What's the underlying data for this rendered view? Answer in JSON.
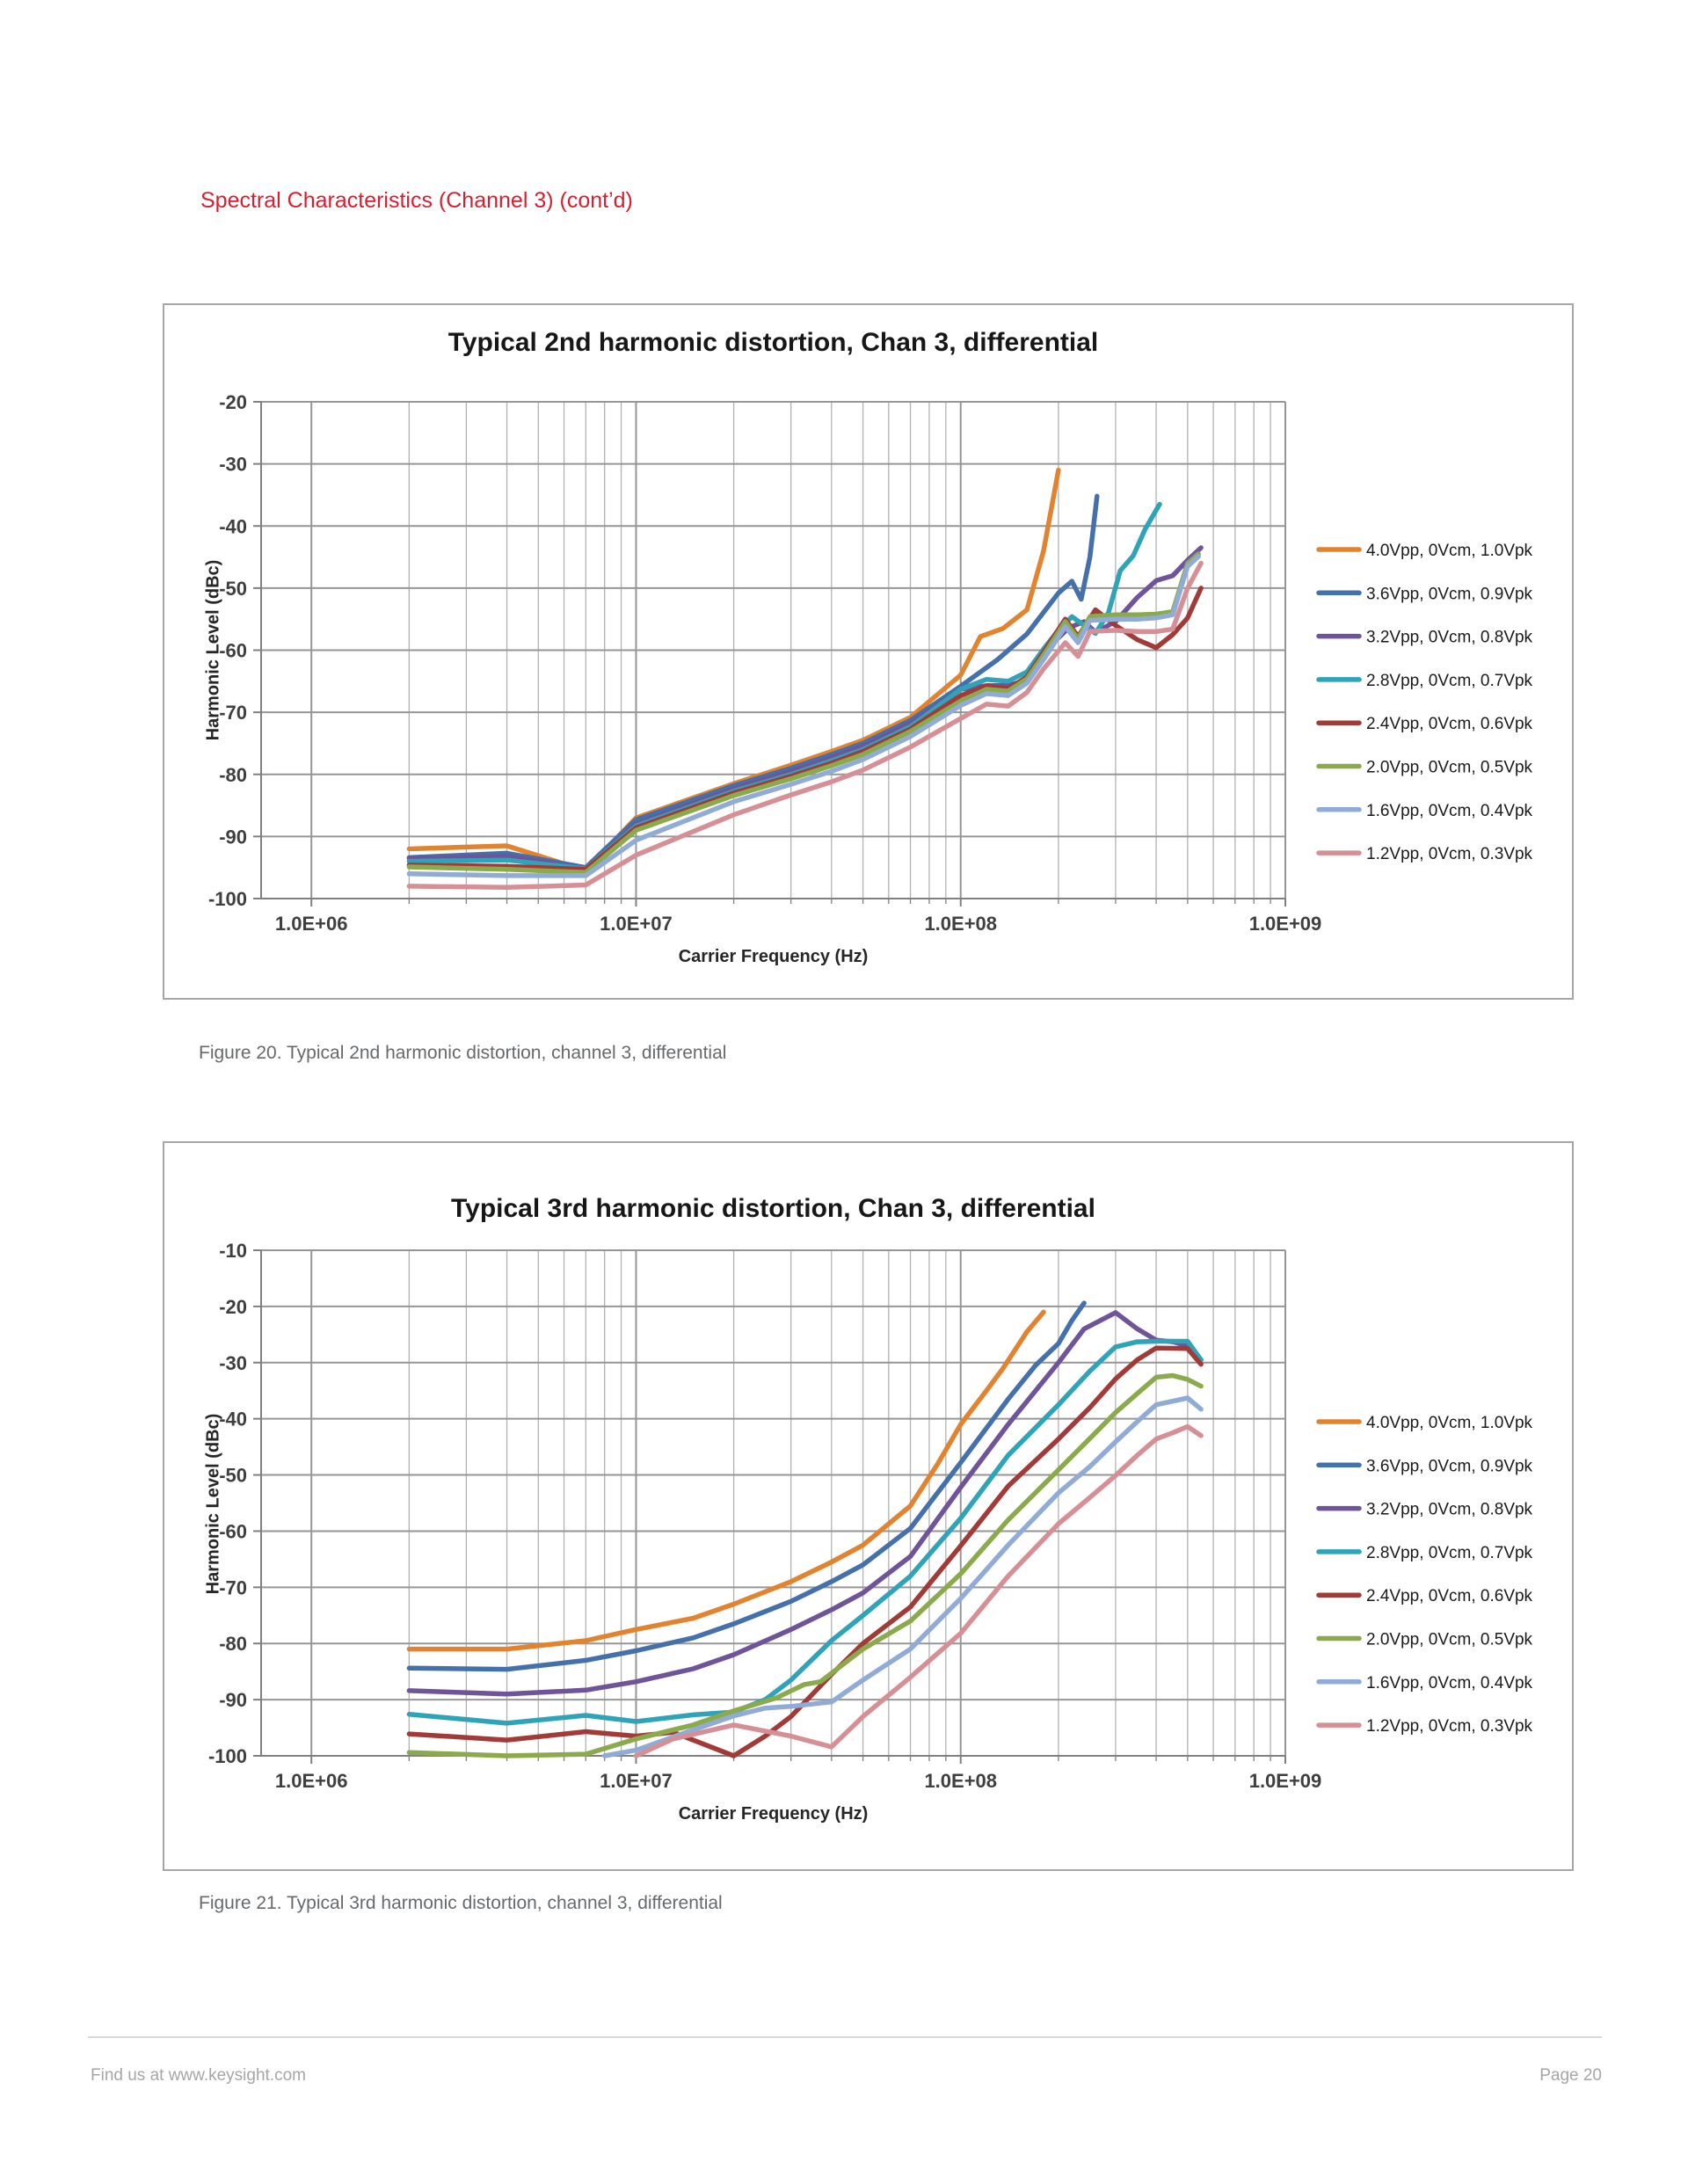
{
  "page": {
    "heading": "Spectral Characteristics (Channel 3) (cont’d)",
    "heading_color": "#d91f2f"
  },
  "figures": [
    {
      "caption": "Figure 20. Typical 2nd harmonic distortion, channel 3, differential"
    },
    {
      "caption": "Figure 21. Typical 3rd harmonic distortion, channel 3, differential"
    }
  ],
  "footer": {
    "left": "Find us at www.keysight.com",
    "right": "Page 20"
  },
  "chart_data": [
    {
      "type": "line",
      "title": "Typical 2nd harmonic distortion, Chan 3, differential",
      "xlabel": "Carrier Frequency (Hz)",
      "ylabel": "Harmonic Level (dBc)",
      "xaxis": {
        "scale": "log",
        "min": 700000,
        "max": 1000000000,
        "ticks": [
          {
            "value": 1000000,
            "label": "1.0E+06"
          },
          {
            "value": 10000000,
            "label": "1.0E+07"
          },
          {
            "value": 100000000,
            "label": "1.0E+08"
          },
          {
            "value": 1000000000,
            "label": "1.0E+09"
          }
        ]
      },
      "yaxis": {
        "min": -100,
        "max": -20,
        "step": 10
      },
      "grid": true,
      "legend_position": "right",
      "series": [
        {
          "name": "4.0Vpp, 0Vcm, 1.0Vpk",
          "color": "#e2842f",
          "x": [
            2000000.0,
            4000000.0,
            7000000.0,
            10000000.0,
            20000000.0,
            30000000.0,
            40000000.0,
            50000000.0,
            70000000.0,
            100000000.0,
            115000000.0,
            135000000.0,
            160000000.0,
            180000000.0,
            200000000.0
          ],
          "y": [
            -92,
            -91.5,
            -95.5,
            -87,
            -81.5,
            -78.5,
            -76.3,
            -74.5,
            -70.8,
            -64,
            -57.8,
            -56.5,
            -53.5,
            -44,
            -31
          ]
        },
        {
          "name": "3.6Vpp, 0Vcm, 0.9Vpk",
          "color": "#4471ac",
          "x": [
            2000000.0,
            4000000.0,
            7000000.0,
            10000000.0,
            20000000.0,
            30000000.0,
            40000000.0,
            50000000.0,
            70000000.0,
            100000000.0,
            130000000.0,
            160000000.0,
            200000000.0,
            220000000.0,
            235000000.0,
            250000000.0,
            263000000.0
          ],
          "y": [
            -93.4,
            -92.7,
            -95,
            -87.3,
            -81.8,
            -79,
            -76.8,
            -75,
            -71.3,
            -65.8,
            -61.5,
            -57.4,
            -50.8,
            -48.9,
            -51.8,
            -45,
            -35.2
          ]
        },
        {
          "name": "3.2Vpp, 0Vcm, 0.8Vpk",
          "color": "#6f5499",
          "x": [
            2000000.0,
            4000000.0,
            7000000.0,
            10000000.0,
            20000000.0,
            30000000.0,
            40000000.0,
            50000000.0,
            70000000.0,
            100000000.0,
            120000000.0,
            140000000.0,
            160000000.0,
            180000000.0,
            200000000.0,
            215000000.0,
            240000000.0,
            260000000.0,
            300000000.0,
            350000000.0,
            400000000.0,
            450000000.0,
            500000000.0,
            550000000.0
          ],
          "y": [
            -93.5,
            -93.2,
            -95.2,
            -88,
            -82.3,
            -79.5,
            -77.3,
            -75.5,
            -71.8,
            -66.3,
            -65.7,
            -65.7,
            -64.8,
            -60.5,
            -58,
            -56.4,
            -55.4,
            -57.1,
            -55.4,
            -51.5,
            -48.8,
            -48,
            -45.5,
            -43.5
          ]
        },
        {
          "name": "2.8Vpp, 0Vcm, 0.7Vpk",
          "color": "#2fa3b8",
          "x": [
            2000000.0,
            4000000.0,
            7000000.0,
            10000000.0,
            20000000.0,
            30000000.0,
            40000000.0,
            50000000.0,
            70000000.0,
            100000000.0,
            120000000.0,
            140000000.0,
            160000000.0,
            180000000.0,
            200000000.0,
            220000000.0,
            240000000.0,
            260000000.0,
            285000000.0,
            310000000.0,
            340000000.0,
            370000000.0,
            410000000.0
          ],
          "y": [
            -94,
            -93.8,
            -95.2,
            -88.3,
            -82.7,
            -80,
            -77.8,
            -76,
            -72.3,
            -66.3,
            -64.7,
            -65,
            -63.5,
            -59.8,
            -56.8,
            -54.6,
            -56,
            -57.3,
            -54,
            -47.2,
            -44.8,
            -40.5,
            -36.5
          ]
        },
        {
          "name": "2.4Vpp, 0Vcm, 0.6Vpk",
          "color": "#a23b38",
          "x": [
            2000000.0,
            4000000.0,
            7000000.0,
            10000000.0,
            20000000.0,
            30000000.0,
            40000000.0,
            50000000.0,
            70000000.0,
            100000000.0,
            120000000.0,
            140000000.0,
            160000000.0,
            180000000.0,
            210000000.0,
            230000000.0,
            260000000.0,
            300000000.0,
            350000000.0,
            400000000.0,
            450000000.0,
            500000000.0,
            550000000.0
          ],
          "y": [
            -94.6,
            -94.8,
            -95.3,
            -88.6,
            -83,
            -80.3,
            -78.2,
            -76.3,
            -72.7,
            -67.3,
            -65.8,
            -66.2,
            -64.3,
            -60.3,
            -55,
            -57.8,
            -53.5,
            -56,
            -58.3,
            -59.6,
            -57.5,
            -54.8,
            -50
          ]
        },
        {
          "name": "2.0Vpp, 0Vcm, 0.5Vpk",
          "color": "#8aaa4b",
          "x": [
            2000000.0,
            4000000.0,
            7000000.0,
            10000000.0,
            20000000.0,
            30000000.0,
            40000000.0,
            50000000.0,
            70000000.0,
            100000000.0,
            120000000.0,
            140000000.0,
            160000000.0,
            180000000.0,
            210000000.0,
            230000000.0,
            250000000.0,
            300000000.0,
            350000000.0,
            400000000.0,
            450000000.0,
            500000000.0,
            540000000.0
          ],
          "y": [
            -94.9,
            -95.3,
            -95.8,
            -89,
            -83.4,
            -80.7,
            -78.6,
            -76.8,
            -73.1,
            -68.2,
            -66.3,
            -66.6,
            -64.6,
            -60.8,
            -55.4,
            -58.2,
            -54.6,
            -54.3,
            -54.3,
            -54.2,
            -53.8,
            -46,
            -44.5
          ]
        },
        {
          "name": "1.6Vpp, 0Vcm, 0.4Vpk",
          "color": "#90acd6",
          "x": [
            2000000.0,
            4000000.0,
            7000000.0,
            10000000.0,
            20000000.0,
            30000000.0,
            40000000.0,
            50000000.0,
            70000000.0,
            100000000.0,
            120000000.0,
            140000000.0,
            160000000.0,
            180000000.0,
            210000000.0,
            230000000.0,
            250000000.0,
            300000000.0,
            350000000.0,
            400000000.0,
            450000000.0,
            500000000.0,
            540000000.0
          ],
          "y": [
            -96,
            -96.3,
            -96.3,
            -90.6,
            -84.4,
            -81.6,
            -79.5,
            -77.6,
            -73.9,
            -68.9,
            -67,
            -67.3,
            -65.3,
            -61.5,
            -56.2,
            -58.8,
            -55.2,
            -55,
            -55,
            -54.8,
            -54.3,
            -46.5,
            -44.9
          ]
        },
        {
          "name": "1.2Vpp, 0Vcm, 0.3Vpk",
          "color": "#d78f96",
          "x": [
            2000000.0,
            4000000.0,
            7000000.0,
            10000000.0,
            20000000.0,
            30000000.0,
            40000000.0,
            50000000.0,
            70000000.0,
            100000000.0,
            120000000.0,
            140000000.0,
            160000000.0,
            180000000.0,
            210000000.0,
            230000000.0,
            250000000.0,
            300000000.0,
            350000000.0,
            400000000.0,
            450000000.0,
            500000000.0,
            550000000.0
          ],
          "y": [
            -98,
            -98.2,
            -97.8,
            -93,
            -86.5,
            -83.3,
            -81.2,
            -79.3,
            -75.6,
            -71,
            -68.7,
            -69,
            -66.8,
            -63,
            -58.8,
            -61,
            -57,
            -56.8,
            -57,
            -57,
            -56.6,
            -50,
            -46
          ]
        }
      ]
    },
    {
      "type": "line",
      "title": "Typical 3rd harmonic distortion, Chan 3, differential",
      "xlabel": "Carrier Frequency (Hz)",
      "ylabel": "Harmonic Level (dBc)",
      "xaxis": {
        "scale": "log",
        "min": 700000,
        "max": 1000000000,
        "ticks": [
          {
            "value": 1000000,
            "label": "1.0E+06"
          },
          {
            "value": 10000000,
            "label": "1.0E+07"
          },
          {
            "value": 100000000,
            "label": "1.0E+08"
          },
          {
            "value": 1000000000,
            "label": "1.0E+09"
          }
        ]
      },
      "yaxis": {
        "min": -100,
        "max": -10,
        "step": 10
      },
      "grid": true,
      "legend_position": "right",
      "series": [
        {
          "name": "4.0Vpp, 0Vcm, 1.0Vpk",
          "color": "#e2842f",
          "x": [
            2000000.0,
            4000000.0,
            7000000.0,
            10000000.0,
            15000000.0,
            20000000.0,
            30000000.0,
            40000000.0,
            50000000.0,
            70000000.0,
            85000000.0,
            100000000.0,
            120000000.0,
            135000000.0,
            160000000.0,
            180000000.0
          ],
          "y": [
            -81,
            -81,
            -79.5,
            -77.5,
            -75.5,
            -73,
            -69,
            -65.5,
            -62.5,
            -55.5,
            -48,
            -41,
            -35,
            -31,
            -24.5,
            -21
          ]
        },
        {
          "name": "3.6Vpp, 0Vcm, 0.9Vpk",
          "color": "#4471ac",
          "x": [
            2000000.0,
            4000000.0,
            7000000.0,
            10000000.0,
            15000000.0,
            20000000.0,
            30000000.0,
            40000000.0,
            50000000.0,
            70000000.0,
            100000000.0,
            140000000.0,
            170000000.0,
            200000000.0,
            220000000.0,
            240000000.0
          ],
          "y": [
            -84.4,
            -84.6,
            -83,
            -81.3,
            -79,
            -76.5,
            -72.5,
            -69,
            -66,
            -59.5,
            -47.8,
            -36.5,
            -30.5,
            -26.6,
            -22.5,
            -19.4
          ]
        },
        {
          "name": "3.2Vpp, 0Vcm, 0.8Vpk",
          "color": "#6f5499",
          "x": [
            2000000.0,
            4000000.0,
            7000000.0,
            10000000.0,
            15000000.0,
            20000000.0,
            30000000.0,
            40000000.0,
            50000000.0,
            70000000.0,
            100000000.0,
            140000000.0,
            200000000.0,
            240000000.0,
            300000000.0,
            350000000.0,
            400000000.0,
            450000000.0,
            500000000.0,
            550000000.0
          ],
          "y": [
            -88.4,
            -89,
            -88.3,
            -86.8,
            -84.5,
            -82,
            -77.5,
            -74,
            -71,
            -64.5,
            -52.2,
            -41,
            -30,
            -24,
            -21.1,
            -24,
            -26,
            -26.3,
            -27,
            -29.5
          ]
        },
        {
          "name": "2.8Vpp, 0Vcm, 0.7Vpk",
          "color": "#2fa3b8",
          "x": [
            2000000.0,
            4000000.0,
            7000000.0,
            10000000.0,
            15000000.0,
            20000000.0,
            25000000.0,
            30000000.0,
            40000000.0,
            50000000.0,
            70000000.0,
            100000000.0,
            140000000.0,
            200000000.0,
            250000000.0,
            300000000.0,
            350000000.0,
            400000000.0,
            500000000.0,
            550000000.0
          ],
          "y": [
            -92.6,
            -94.2,
            -92.8,
            -93.9,
            -92.7,
            -92.2,
            -90,
            -86.5,
            -79.5,
            -75,
            -68,
            -57.7,
            -46.5,
            -37.5,
            -31.5,
            -27.2,
            -26.3,
            -26.2,
            -26.2,
            -29.5
          ]
        },
        {
          "name": "2.4Vpp, 0Vcm, 0.6Vpk",
          "color": "#a23b38",
          "x": [
            2000000.0,
            4000000.0,
            7000000.0,
            10000000.0,
            13000000.0,
            20000000.0,
            25000000.0,
            30000000.0,
            40000000.0,
            50000000.0,
            70000000.0,
            100000000.0,
            140000000.0,
            200000000.0,
            250000000.0,
            300000000.0,
            350000000.0,
            400000000.0,
            500000000.0,
            550000000.0
          ],
          "y": [
            -96.1,
            -97.2,
            -95.7,
            -96.5,
            -95.8,
            -100,
            -96.5,
            -93,
            -85.5,
            -80,
            -73.5,
            -62.6,
            -52,
            -43.6,
            -38,
            -32.9,
            -29.5,
            -27.4,
            -27.5,
            -30.3
          ]
        },
        {
          "name": "2.0Vpp, 0Vcm, 0.5Vpk",
          "color": "#8aaa4b",
          "x": [
            2000000.0,
            4000000.0,
            7000000.0,
            10000000.0,
            15000000.0,
            20000000.0,
            27000000.0,
            33000000.0,
            37000000.0,
            50000000.0,
            70000000.0,
            100000000.0,
            140000000.0,
            200000000.0,
            250000000.0,
            300000000.0,
            350000000.0,
            400000000.0,
            450000000.0,
            500000000.0,
            550000000.0
          ],
          "y": [
            -99.4,
            -100,
            -99.7,
            -97,
            -94.5,
            -92,
            -89.7,
            -87.3,
            -86.8,
            -81,
            -76,
            -67.6,
            -58,
            -49.1,
            -43.5,
            -38.9,
            -35.5,
            -32.6,
            -32.3,
            -33,
            -34.2
          ]
        },
        {
          "name": "1.6Vpp, 0Vcm, 0.4Vpk",
          "color": "#90acd6",
          "x": [
            8000000.0,
            10000000.0,
            14000000.0,
            20000000.0,
            25000000.0,
            30000000.0,
            40000000.0,
            50000000.0,
            70000000.0,
            100000000.0,
            140000000.0,
            200000000.0,
            250000000.0,
            300000000.0,
            350000000.0,
            400000000.0,
            500000000.0,
            550000000.0
          ],
          "y": [
            -100,
            -99,
            -96,
            -92.9,
            -91.5,
            -91.2,
            -90.4,
            -86.5,
            -81,
            -72,
            -62.5,
            -53.2,
            -48.5,
            -44.1,
            -40.5,
            -37.5,
            -36.3,
            -38.3
          ]
        },
        {
          "name": "1.2Vpp, 0Vcm, 0.3Vpk",
          "color": "#d78f96",
          "x": [
            10000000.0,
            13000000.0,
            20000000.0,
            30000000.0,
            40000000.0,
            50000000.0,
            70000000.0,
            100000000.0,
            140000000.0,
            200000000.0,
            250000000.0,
            300000000.0,
            350000000.0,
            400000000.0,
            450000000.0,
            500000000.0,
            550000000.0
          ],
          "y": [
            -100,
            -97,
            -94.5,
            -96.5,
            -98.4,
            -93,
            -86,
            -78.2,
            -68,
            -58.7,
            -54,
            -50.1,
            -46.5,
            -43.6,
            -42.5,
            -41.4,
            -43
          ]
        }
      ]
    }
  ]
}
